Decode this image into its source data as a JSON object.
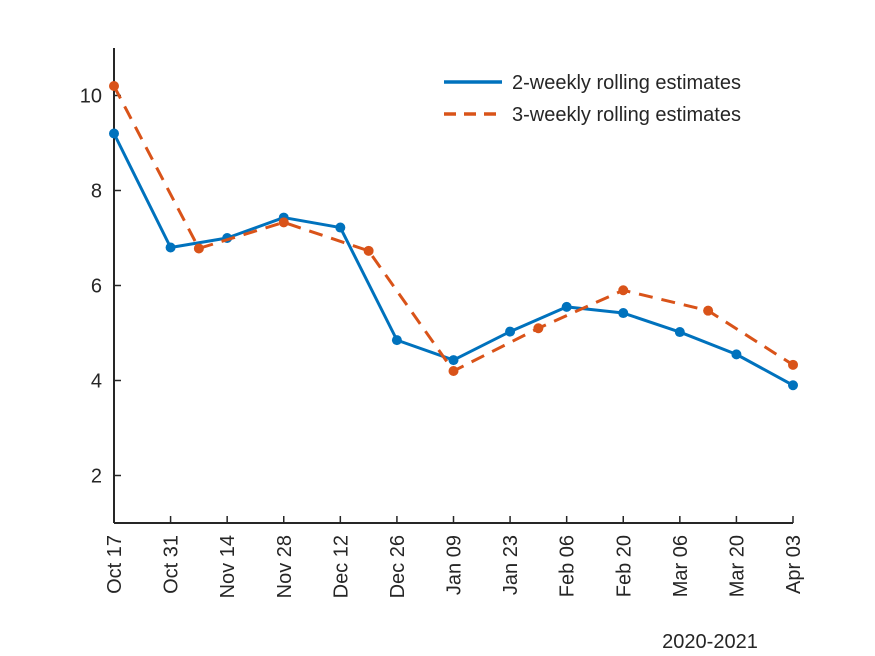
{
  "chart_data": {
    "type": "line",
    "title": "",
    "xlabel": "2020-2021",
    "ylabel": "",
    "xlim": [
      0,
      12
    ],
    "ylim": [
      1,
      11
    ],
    "grid": false,
    "legend_position": "top-right",
    "x_tick_labels": [
      "Oct 17",
      "Oct 31",
      "Nov 14",
      "Nov 28",
      "Dec 12",
      "Dec 26",
      "Jan 09",
      "Jan 23",
      "Feb 06",
      "Feb 20",
      "Mar 06",
      "Mar 20",
      "Apr 03"
    ],
    "y_ticks": [
      2,
      4,
      6,
      8,
      10
    ],
    "series": [
      {
        "name": "2-weekly rolling estimates",
        "color": "#0072BD",
        "style": "solid",
        "x": [
          0,
          1,
          2,
          3,
          4,
          5,
          6,
          7,
          8,
          9,
          10,
          11,
          12
        ],
        "y": [
          9.2,
          6.8,
          7.0,
          7.43,
          7.22,
          4.85,
          4.43,
          5.03,
          5.55,
          5.42,
          5.02,
          4.55,
          3.9
        ]
      },
      {
        "name": "3-weekly rolling estimates",
        "color": "#D95319",
        "style": "dashed",
        "x": [
          0,
          1.5,
          3,
          4.5,
          6,
          7.5,
          9,
          10.5,
          12
        ],
        "y": [
          10.2,
          6.78,
          7.33,
          6.73,
          4.2,
          5.1,
          5.9,
          5.47,
          4.33
        ]
      }
    ]
  }
}
